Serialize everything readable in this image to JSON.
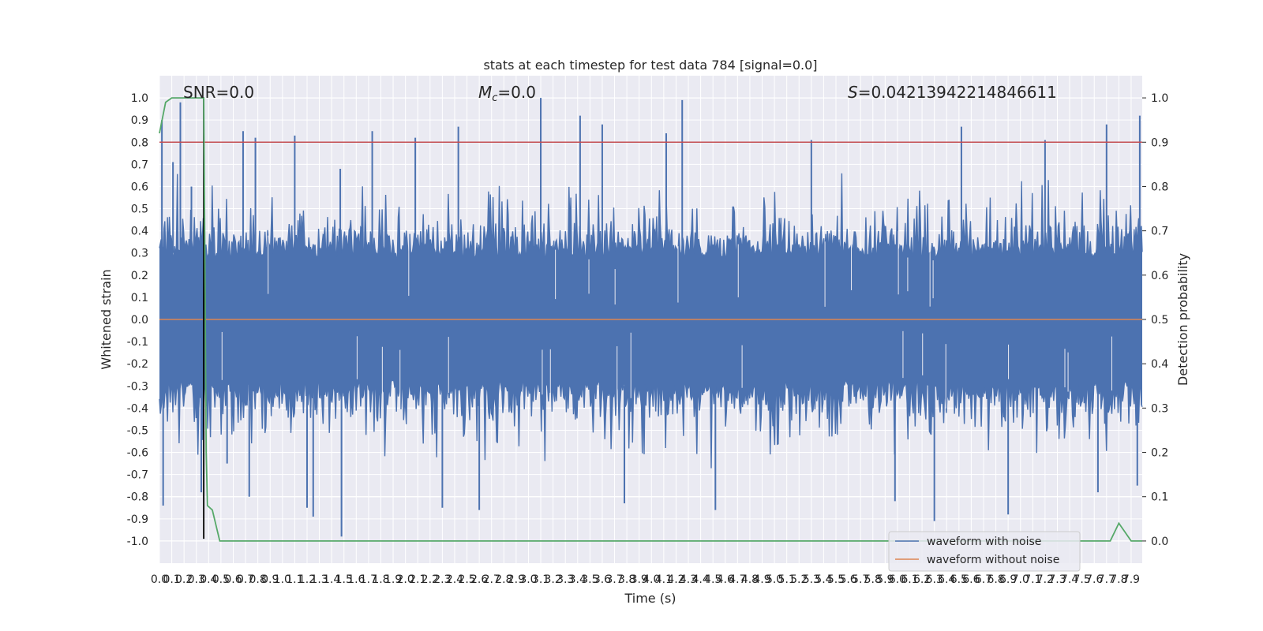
{
  "chart_data": {
    "type": "line",
    "title": "stats at each timestep for test data 784 [signal=0.0]",
    "xlabel": "Time (s)",
    "ylabel_left": "Whitened strain",
    "ylabel_right": "Detection probability",
    "xlim": [
      0.0,
      7.99
    ],
    "ylim_left": [
      -1.1,
      1.1
    ],
    "ylim_right": [
      -0.05,
      1.05
    ],
    "x_ticks": [
      0.0,
      0.1,
      0.2,
      0.3,
      0.4,
      0.5,
      0.6,
      0.7,
      0.8,
      0.9,
      1.0,
      1.1,
      1.2,
      1.3,
      1.4,
      1.5,
      1.6,
      1.7,
      1.8,
      1.9,
      2.0,
      2.1,
      2.2,
      2.3,
      2.4,
      2.5,
      2.6,
      2.7,
      2.8,
      2.9,
      3.0,
      3.1,
      3.2,
      3.3,
      3.4,
      3.5,
      3.6,
      3.7,
      3.8,
      3.9,
      4.0,
      4.1,
      4.2,
      4.3,
      4.4,
      4.5,
      4.6,
      4.7,
      4.8,
      4.9,
      5.0,
      5.1,
      5.2,
      5.3,
      5.4,
      5.5,
      5.6,
      5.7,
      5.8,
      5.9,
      6.0,
      6.1,
      6.2,
      6.3,
      6.4,
      6.5,
      6.6,
      6.7,
      6.8,
      6.9,
      7.0,
      7.1,
      7.2,
      7.3,
      7.4,
      7.5,
      7.6,
      7.7,
      7.8,
      7.9
    ],
    "y_ticks_left": [
      1.0,
      0.9,
      0.8,
      0.7,
      0.6,
      0.5,
      0.4,
      0.3,
      0.2,
      0.1,
      0.0,
      -0.1,
      -0.2,
      -0.3,
      -0.4,
      -0.5,
      -0.6,
      -0.7,
      -0.8,
      -0.9,
      -1.0
    ],
    "y_ticks_right": [
      1.0,
      0.9,
      0.8,
      0.7,
      0.6,
      0.5,
      0.4,
      0.3,
      0.2,
      0.1,
      0.0
    ],
    "grid": true,
    "legend_position": "lower-right",
    "annotations": {
      "snr": "SNR=0.0",
      "mc_symbol": "M",
      "mc_sub": "c",
      "mc_value": "=0.0",
      "s_symbol": "S",
      "s_value": "=0.04213942214846611"
    },
    "series": [
      {
        "name": "waveform with noise",
        "axis": "left",
        "color": "#4c72b0",
        "description_values": {
          "typical_envelope": 0.35,
          "peak_max": 1.0,
          "peak_min": -0.98
        },
        "peaks": [
          {
            "x": 0.02,
            "y": 0.9
          },
          {
            "x": 0.03,
            "y": -0.84
          },
          {
            "x": 0.11,
            "y": 0.71
          },
          {
            "x": 0.17,
            "y": 0.98
          },
          {
            "x": 0.26,
            "y": 0.6
          },
          {
            "x": 0.34,
            "y": -0.78
          },
          {
            "x": 0.55,
            "y": -0.65
          },
          {
            "x": 0.68,
            "y": 0.85
          },
          {
            "x": 0.78,
            "y": 0.82
          },
          {
            "x": 0.73,
            "y": -0.8
          },
          {
            "x": 1.1,
            "y": 0.83
          },
          {
            "x": 1.2,
            "y": -0.85
          },
          {
            "x": 1.25,
            "y": -0.89
          },
          {
            "x": 1.47,
            "y": 0.68
          },
          {
            "x": 1.48,
            "y": -0.98
          },
          {
            "x": 1.73,
            "y": 0.85
          },
          {
            "x": 2.08,
            "y": 0.82
          },
          {
            "x": 2.3,
            "y": -0.85
          },
          {
            "x": 2.43,
            "y": 0.87
          },
          {
            "x": 2.6,
            "y": -0.86
          },
          {
            "x": 3.1,
            "y": 1.0
          },
          {
            "x": 3.42,
            "y": 0.92
          },
          {
            "x": 3.6,
            "y": 0.88
          },
          {
            "x": 3.78,
            "y": -0.83
          },
          {
            "x": 4.12,
            "y": 0.84
          },
          {
            "x": 4.25,
            "y": 0.99
          },
          {
            "x": 4.52,
            "y": -0.86
          },
          {
            "x": 5.3,
            "y": 0.81
          },
          {
            "x": 5.98,
            "y": -0.82
          },
          {
            "x": 6.3,
            "y": -0.91
          },
          {
            "x": 6.52,
            "y": 0.87
          },
          {
            "x": 6.9,
            "y": -0.88
          },
          {
            "x": 7.2,
            "y": 0.81
          },
          {
            "x": 7.63,
            "y": -0.78
          },
          {
            "x": 7.7,
            "y": 0.88
          },
          {
            "x": 7.97,
            "y": 0.92
          },
          {
            "x": 7.95,
            "y": -0.75
          }
        ]
      },
      {
        "name": "waveform without noise",
        "axis": "left",
        "color": "#dd8452",
        "x": [
          0.0,
          7.99
        ],
        "y": [
          0.0,
          0.0
        ]
      },
      {
        "name": "detection probability",
        "axis": "right",
        "color": "#55a868",
        "x": [
          0.0,
          0.05,
          0.1,
          0.2,
          0.3,
          0.36,
          0.37,
          0.38,
          0.39,
          0.43,
          0.49,
          1.0,
          2.0,
          3.0,
          4.0,
          5.0,
          6.0,
          7.0,
          7.65,
          7.73,
          7.8,
          7.9,
          7.99
        ],
        "y": [
          0.92,
          0.99,
          1.0,
          1.0,
          1.0,
          1.0,
          0.6,
          0.2,
          0.08,
          0.07,
          0.0,
          0.0,
          0.0,
          0.0,
          0.0,
          0.0,
          0.0,
          0.0,
          0.0,
          0.0,
          0.04,
          0.0,
          0.0
        ]
      },
      {
        "name": "threshold",
        "axis": "right",
        "color": "#c44e52",
        "x": [
          0.0,
          7.99
        ],
        "y": [
          0.9,
          0.9
        ]
      }
    ],
    "vertical_marker": {
      "x": 0.36,
      "color": "#000000",
      "y_range": [
        -0.99,
        1.0
      ]
    }
  }
}
